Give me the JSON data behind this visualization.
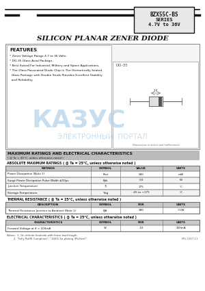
{
  "title_line1": "BZX55C-BS",
  "title_line2": "SERIES",
  "title_line3": "4.7V to 36V",
  "main_title": "SILICON PLANAR ZENER DIODE",
  "features_title": "FEATURES",
  "feature_lines": [
    "* Zener Voltage Range 4.7 to 36 Volts.",
    "* DO-35 Glass Axial Package.",
    "* Best Suited For Industrial, Military and Space Applications.",
    "* The Glass Passivated Diode Chip in The Hermetically Sealed",
    "  Glass Package with Double Studs Provides Excellent Stability",
    "  and Reliability."
  ],
  "diagram_label": "DO-35",
  "dim_note": "Dimensions in inches and (millimetres)",
  "section_banner_line1": "MAXIMUM RATINGS AND ELECTRICAL CHARACTERISTICS",
  "section_banner_line2": "( @ Ta = 25°C, unless otherwise noted )",
  "abs_title": "ABSOLUTE MAXIMUM RATINGS ( @ Ta = 25°C, unless otherwise noted )",
  "abs_headers": [
    "RATINGS",
    "SYMBOL",
    "VALUE",
    "UNITS"
  ],
  "abs_rows": [
    [
      "Power Dissipation (Note 1)",
      "Ptot",
      "500",
      "mW"
    ],
    [
      "Surge Power Dissipation Pulse Width ≤10μs",
      "Ppk",
      "5.0",
      "W"
    ],
    [
      "Junction Temperature",
      "Tj",
      "175",
      "°C"
    ],
    [
      "Storage Temperature",
      "Tstg",
      "-65 to +175",
      "°C"
    ]
  ],
  "thermal_title": "THERMAL RESISTANCE ( @ Ta = 25°C, unless otherwise noted )",
  "thermal_headers": [
    "DESCRIPTION",
    "SYMBOL",
    "FOR",
    "UNITS"
  ],
  "thermal_rows": [
    [
      "Thermal Resistance Junction to Ambient (Note 1)",
      "θJA",
      "300",
      "°C/W"
    ]
  ],
  "elec_title": "ELECTRICAL CHARACTERISTICS ( @ Ta = 25°C, unless otherwise noted )",
  "elec_headers": [
    "CHARACTERISTICS",
    "SYMBOL",
    "FOR",
    "UNITS"
  ],
  "elec_rows": [
    [
      "Forward Voltage at If = 100mA",
      "VF",
      "1.0",
      "100mA"
    ]
  ],
  "notes_line1": "Notes:  1. On infinite heatsink with 6mm lead length.",
  "notes_line2": "        2. \"Fully RoHS Compliant\", \"100% Sn plating (Pb-free)\".",
  "doc_num": "MS 2007-13",
  "watermark_big": "КАЗУС",
  "watermark_small": "ЭЛЕКТРОННЫЙ  ПОРТАЛ",
  "bg_color": "#ffffff",
  "watermark_color": "#b8d4e8",
  "table_hdr_color": "#c8c8c8",
  "table_border": "#666666",
  "text_dark": "#111111",
  "text_mid": "#444444",
  "text_light": "#666666"
}
